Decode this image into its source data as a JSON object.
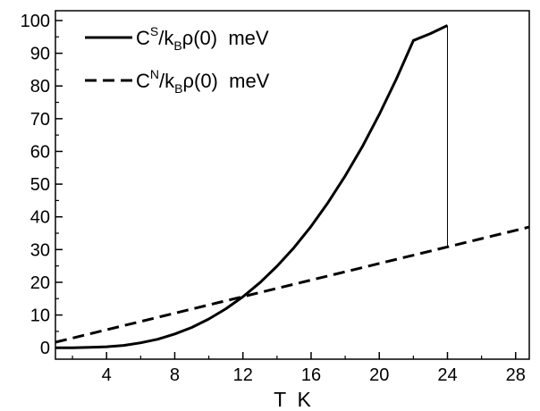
{
  "chart_data": {
    "type": "line",
    "xlabel": "T  K",
    "ylabel": "",
    "xlim": [
      1,
      28.8
    ],
    "ylim": [
      -3.5,
      103
    ],
    "x_ticks": [
      4,
      8,
      12,
      16,
      20,
      24,
      28
    ],
    "y_ticks": [
      0,
      10,
      20,
      30,
      40,
      50,
      60,
      70,
      80,
      90,
      100
    ],
    "grid": false,
    "legend": "top-left",
    "series": [
      {
        "name": "CS/kBρ(0)  meV",
        "style": "solid",
        "x": [
          1,
          2,
          3,
          4,
          5,
          6,
          7,
          8,
          9,
          10,
          11,
          12,
          13,
          14,
          15,
          16,
          17,
          18,
          19,
          20,
          21,
          22,
          23,
          24
        ],
        "y": [
          0,
          0,
          0.1,
          0.3,
          0.7,
          1.5,
          2.6,
          4.2,
          6.2,
          8.8,
          11.9,
          15.6,
          19.9,
          24.9,
          30.6,
          37.1,
          44.4,
          52.5,
          61.4,
          71.3,
          82.1,
          93.9,
          96,
          98.5
        ]
      },
      {
        "name": "CN/kBρ(0)  meV",
        "style": "dashed",
        "x": [
          1,
          28.8
        ],
        "y": [
          1.7,
          36.9
        ]
      }
    ],
    "transition_line": {
      "x": 24,
      "y_from": 31.2,
      "y_to": 98.5
    }
  },
  "legend": {
    "solid": {
      "main": "C",
      "sup": "S",
      "mid": "/k",
      "sub": "B",
      "tail": "ρ(0)  meV"
    },
    "dashed": {
      "main": "C",
      "sup": "N",
      "mid": "/k",
      "sub": "B",
      "tail": "ρ(0)  meV"
    }
  },
  "colors": {
    "line": "#000000",
    "background": "#ffffff"
  }
}
